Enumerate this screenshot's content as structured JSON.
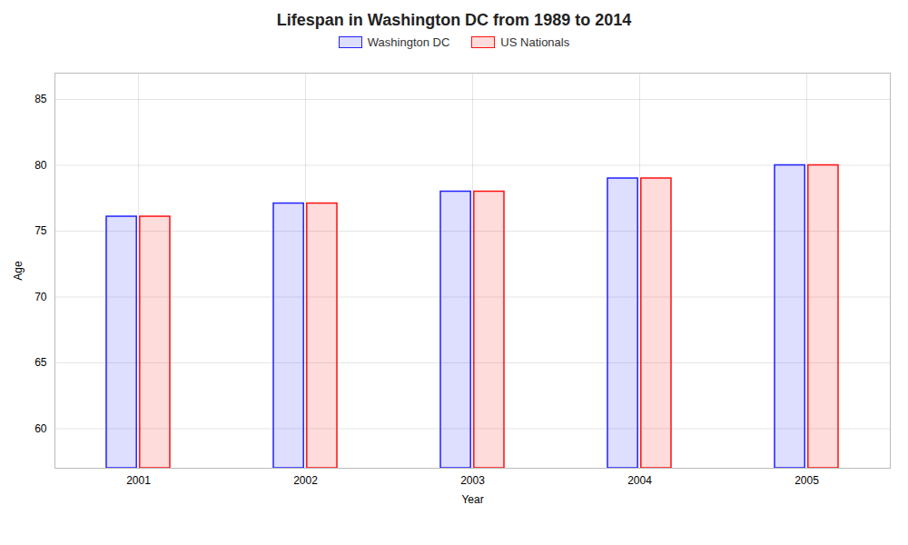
{
  "chart_data": {
    "type": "bar",
    "title": "Lifespan in Washington DC from 1989 to 2014",
    "xlabel": "Year",
    "ylabel": "Age",
    "categories": [
      "2001",
      "2002",
      "2003",
      "2004",
      "2005"
    ],
    "series": [
      {
        "name": "Washington DC",
        "color": "#2222ff",
        "values": [
          76.1,
          77.1,
          78.0,
          79.0,
          80.0
        ]
      },
      {
        "name": "US Nationals",
        "color": "#ff1111",
        "values": [
          76.1,
          77.1,
          78.0,
          79.0,
          80.0
        ]
      }
    ],
    "ylim": [
      57,
      87
    ],
    "yticks": [
      60,
      65,
      70,
      75,
      80,
      85
    ],
    "grid": true,
    "legend": "top"
  }
}
